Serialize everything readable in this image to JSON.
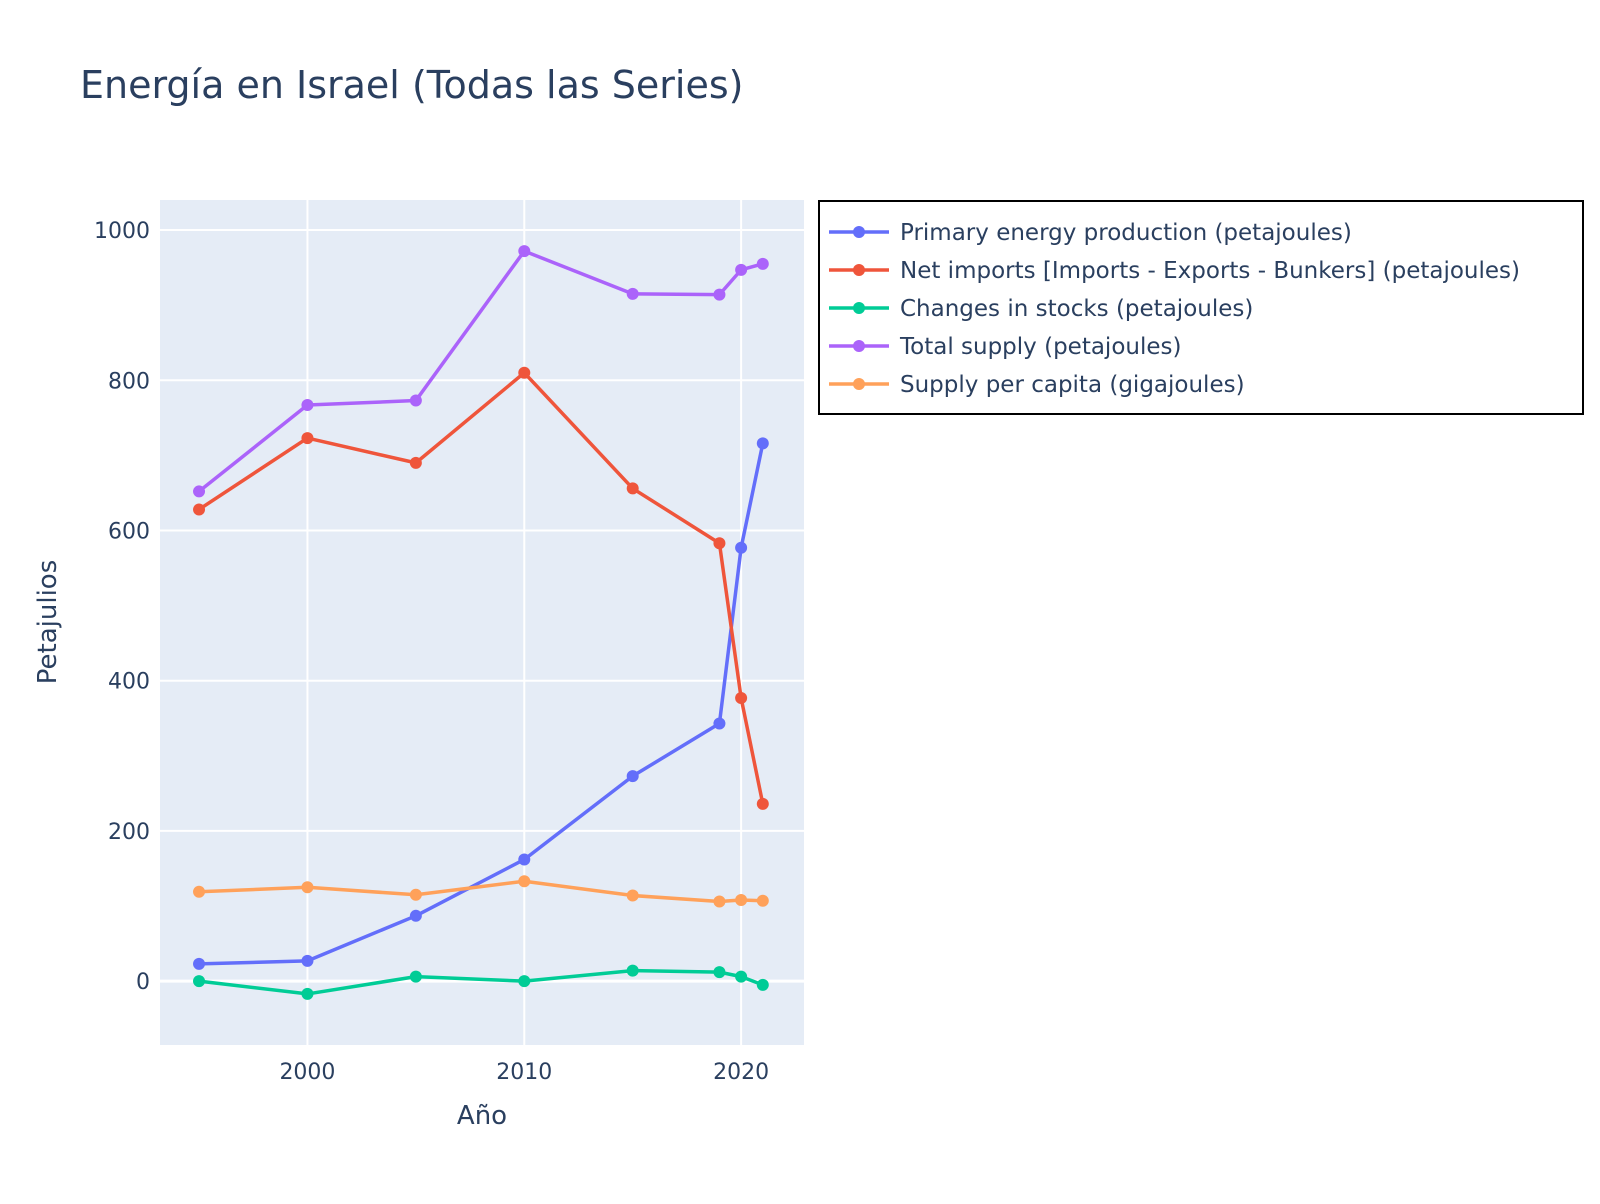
{
  "chart_data": {
    "type": "line",
    "title": "Energía en Israel (Todas las Series)",
    "xlabel": "Año",
    "ylabel": "Petajulios",
    "xlim": [
      1993.2,
      2022.9
    ],
    "ylim": [
      -85,
      1040
    ],
    "x_ticks": [
      2000,
      2010,
      2020
    ],
    "y_ticks": [
      0,
      200,
      400,
      600,
      800,
      1000
    ],
    "grid": true,
    "legend_position": "right",
    "x": [
      1995,
      2000,
      2005,
      2010,
      2015,
      2019,
      2020,
      2021
    ],
    "series": [
      {
        "name": "Primary energy production (petajoules)",
        "color": "#636efa",
        "values": [
          23,
          27,
          87,
          162,
          273,
          343,
          577,
          716
        ]
      },
      {
        "name": "Net imports [Imports - Exports - Bunkers] (petajoules)",
        "color": "#ef553b",
        "values": [
          628,
          723,
          690,
          810,
          656,
          583,
          377,
          236
        ]
      },
      {
        "name": "Changes in stocks (petajoules)",
        "color": "#00cc96",
        "values": [
          0,
          -17,
          6,
          0,
          14,
          12,
          6,
          -5
        ]
      },
      {
        "name": "Total supply (petajoules)",
        "color": "#ab63fa",
        "values": [
          652,
          767,
          773,
          972,
          915,
          914,
          947,
          955
        ]
      },
      {
        "name": "Supply per capita (gigajoules)",
        "color": "#ffa15a",
        "values": [
          119,
          125,
          115,
          133,
          114,
          106,
          108,
          107
        ]
      }
    ]
  }
}
